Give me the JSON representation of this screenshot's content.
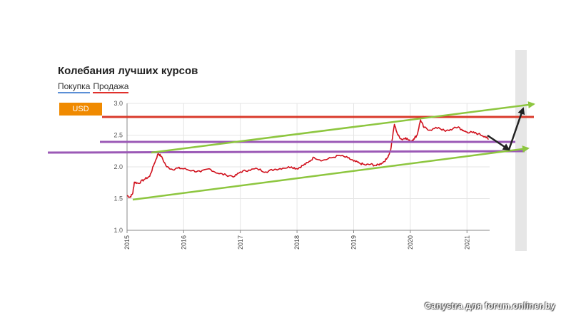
{
  "chart_data": {
    "type": "line",
    "title": "Колебания лучших курсов",
    "legend": [
      "Покупка",
      "Продажа"
    ],
    "currency_button": "USD",
    "xlabel": "",
    "ylabel": "",
    "x_ticks": [
      "2015",
      "2016",
      "2017",
      "2018",
      "2019",
      "2020",
      "2021"
    ],
    "y_ticks": [
      1.0,
      1.5,
      2.0,
      2.5,
      3.0
    ],
    "xlim": [
      2015.0,
      2021.4
    ],
    "ylim": [
      1.0,
      3.0
    ],
    "grid": true,
    "legend_position": "top-left",
    "series": [
      {
        "name": "Продажа",
        "color": "#d0101c",
        "points": [
          [
            2015.0,
            1.55
          ],
          [
            2015.05,
            1.52
          ],
          [
            2015.1,
            1.58
          ],
          [
            2015.13,
            1.76
          ],
          [
            2015.2,
            1.74
          ],
          [
            2015.3,
            1.8
          ],
          [
            2015.4,
            1.85
          ],
          [
            2015.48,
            2.05
          ],
          [
            2015.55,
            2.21
          ],
          [
            2015.6,
            2.17
          ],
          [
            2015.7,
            2.0
          ],
          [
            2015.8,
            1.96
          ],
          [
            2015.9,
            1.98
          ],
          [
            2016.0,
            1.97
          ],
          [
            2016.15,
            1.94
          ],
          [
            2016.3,
            1.92
          ],
          [
            2016.45,
            1.97
          ],
          [
            2016.6,
            1.9
          ],
          [
            2016.75,
            1.87
          ],
          [
            2016.9,
            1.85
          ],
          [
            2017.0,
            1.92
          ],
          [
            2017.15,
            1.95
          ],
          [
            2017.3,
            1.97
          ],
          [
            2017.45,
            1.92
          ],
          [
            2017.6,
            1.96
          ],
          [
            2017.75,
            1.98
          ],
          [
            2017.9,
            2.0
          ],
          [
            2018.0,
            1.97
          ],
          [
            2018.1,
            2.02
          ],
          [
            2018.2,
            2.07
          ],
          [
            2018.3,
            2.15
          ],
          [
            2018.45,
            2.1
          ],
          [
            2018.6,
            2.14
          ],
          [
            2018.75,
            2.18
          ],
          [
            2018.9,
            2.14
          ],
          [
            2019.0,
            2.09
          ],
          [
            2019.1,
            2.06
          ],
          [
            2019.2,
            2.03
          ],
          [
            2019.3,
            2.04
          ],
          [
            2019.4,
            2.02
          ],
          [
            2019.5,
            2.06
          ],
          [
            2019.58,
            2.12
          ],
          [
            2019.65,
            2.25
          ],
          [
            2019.72,
            2.67
          ],
          [
            2019.78,
            2.5
          ],
          [
            2019.85,
            2.43
          ],
          [
            2019.92,
            2.46
          ],
          [
            2020.0,
            2.4
          ],
          [
            2020.06,
            2.44
          ],
          [
            2020.12,
            2.5
          ],
          [
            2020.18,
            2.74
          ],
          [
            2020.24,
            2.62
          ],
          [
            2020.35,
            2.58
          ],
          [
            2020.5,
            2.62
          ],
          [
            2020.62,
            2.56
          ],
          [
            2020.75,
            2.6
          ],
          [
            2020.85,
            2.63
          ],
          [
            2020.92,
            2.57
          ],
          [
            2021.0,
            2.55
          ],
          [
            2021.1,
            2.54
          ],
          [
            2021.2,
            2.52
          ],
          [
            2021.32,
            2.48
          ],
          [
            2021.38,
            2.43
          ]
        ]
      }
    ]
  },
  "watermark": "Canystra для forum.onliner.by"
}
